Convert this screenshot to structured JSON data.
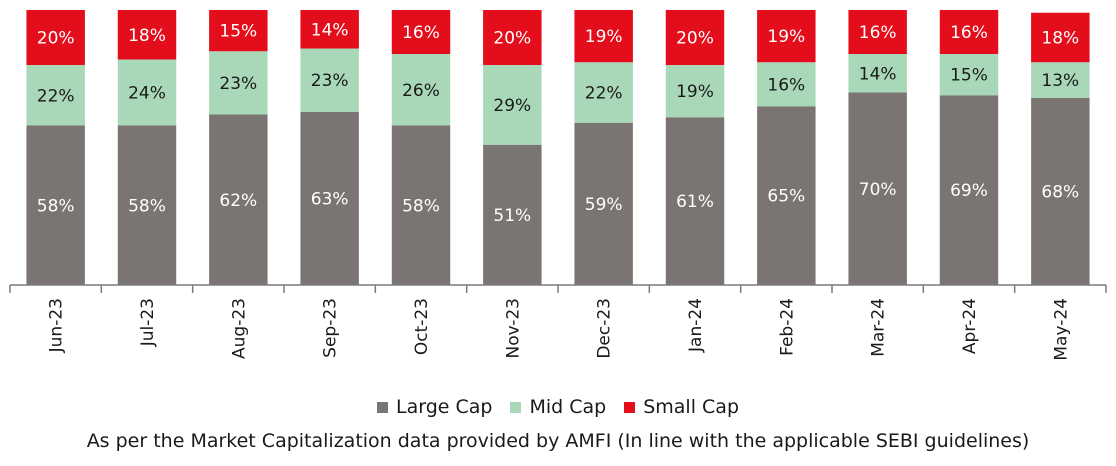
{
  "chart_data": {
    "type": "bar",
    "stacked": true,
    "categories": [
      "Jun-23",
      "Jul-23",
      "Aug-23",
      "Sep-23",
      "Oct-23",
      "Nov-23",
      "Dec-23",
      "Jan-24",
      "Feb-24",
      "Mar-24",
      "Apr-24",
      "May-24"
    ],
    "series": [
      {
        "name": "Large Cap",
        "color": "#7a7573",
        "label_color": "#ffffff",
        "values": [
          58,
          58,
          62,
          63,
          58,
          51,
          59,
          61,
          65,
          70,
          69,
          68
        ]
      },
      {
        "name": "Mid Cap",
        "color": "#a8d8b8",
        "label_color": "#1a1a1a",
        "values": [
          22,
          24,
          23,
          23,
          26,
          29,
          22,
          19,
          16,
          14,
          15,
          13
        ]
      },
      {
        "name": "Small Cap",
        "color": "#e30d1b",
        "label_color": "#ffffff",
        "values": [
          20,
          18,
          15,
          14,
          16,
          20,
          19,
          20,
          19,
          16,
          16,
          18
        ]
      }
    ],
    "value_suffix": "%",
    "xlabel": "",
    "ylabel": "",
    "legend_position": "bottom",
    "grid": false
  },
  "legend": {
    "large_cap": "Large Cap",
    "mid_cap": "Mid Cap",
    "small_cap": "Small Cap"
  },
  "footnote": "As per the Market Capitalization data provided by AMFI (In line with the applicable SEBI guidelines)"
}
